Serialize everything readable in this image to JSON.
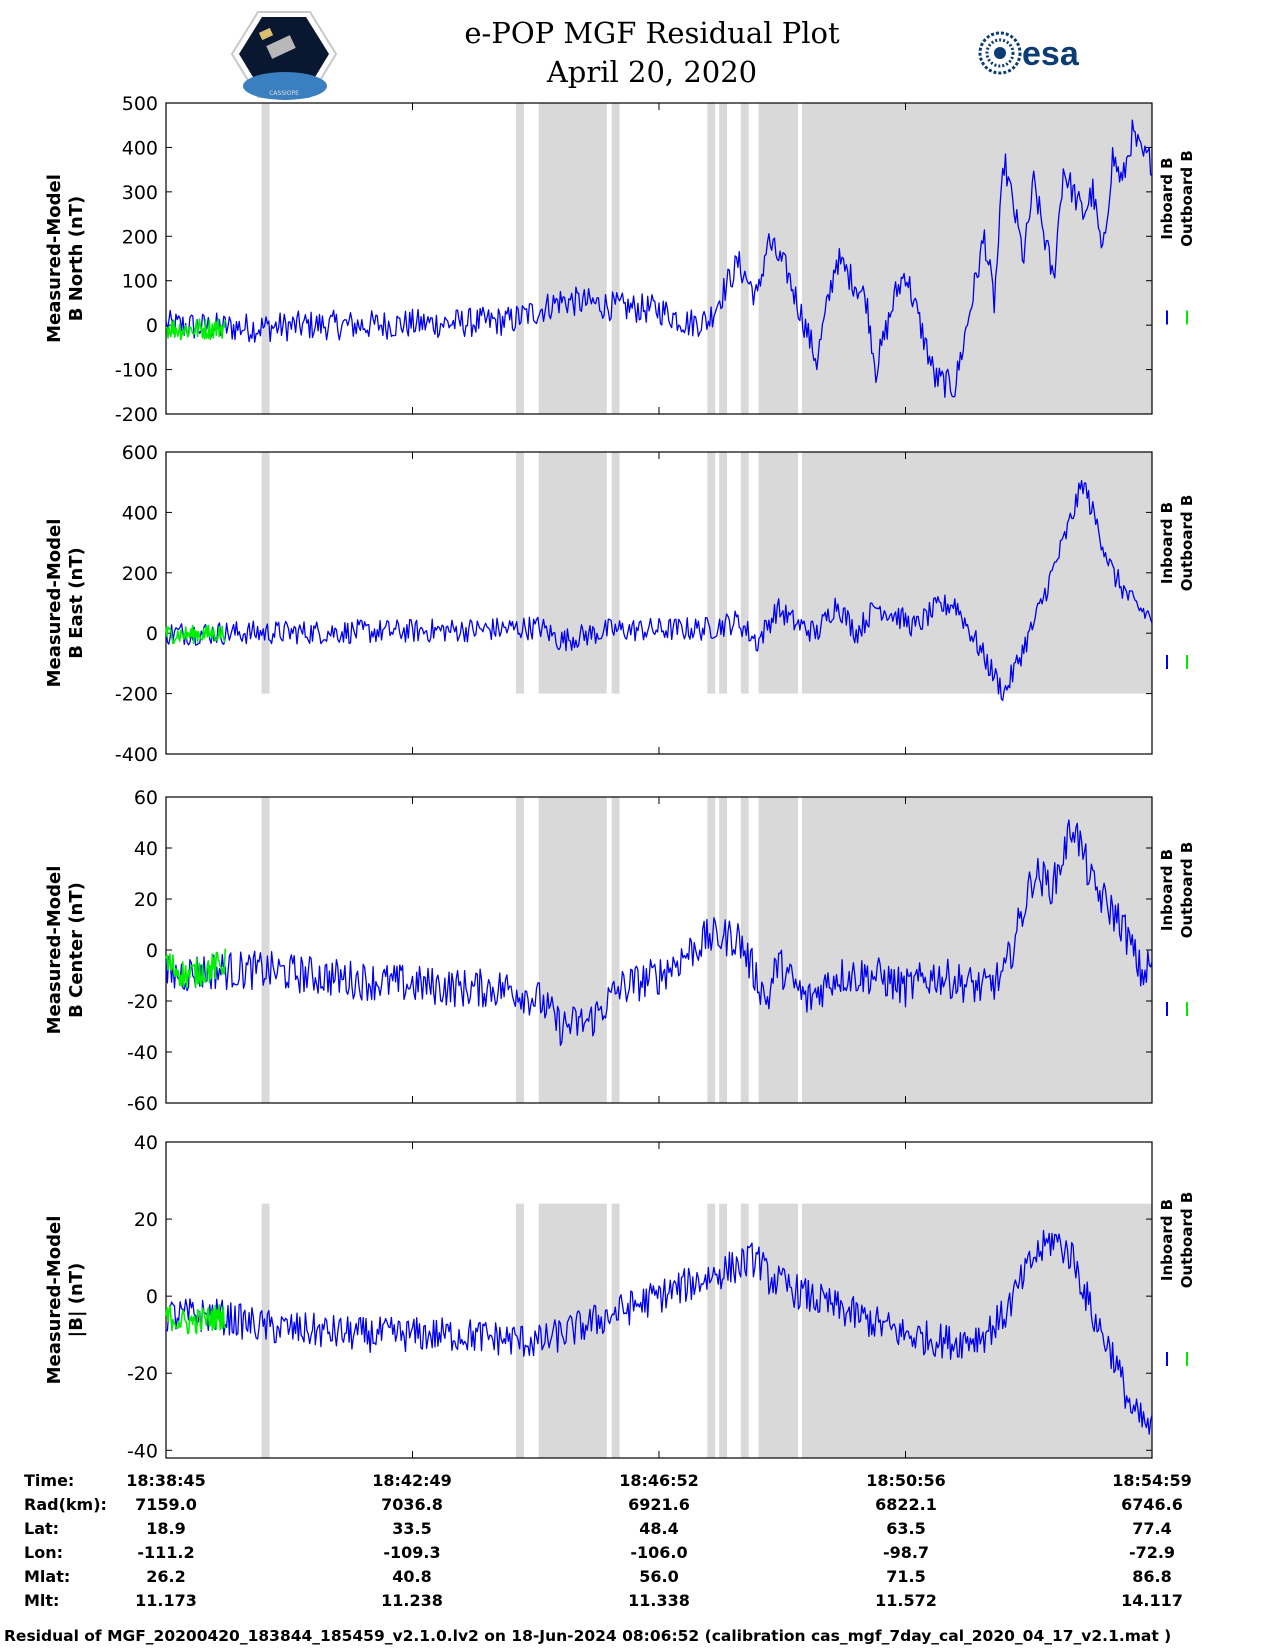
{
  "header": {
    "title_line1": "e-POP MGF Residual Plot",
    "title_line2": "April 20, 2020",
    "esa_logo_text": "esa",
    "cassiope_logo_text": "CASSIOPE"
  },
  "colors": {
    "inboard": "#0000ee",
    "outboard": "#00ee00",
    "shade": "#d9d9d9"
  },
  "legend": {
    "inboard": "Inboard B",
    "outboard": "Outboard B"
  },
  "chart_data": [
    {
      "type": "line",
      "ylabel_line1": "Measured-Model",
      "ylabel_line2": "B North (nT)",
      "ylim": [
        -200,
        500
      ],
      "yticks": [
        "500",
        "400",
        "300",
        "200",
        "100",
        "0",
        "-100",
        "-200"
      ],
      "shade_ylim": [
        -200,
        500
      ],
      "x_time_range": [
        "18:38:45",
        "18:54:59"
      ],
      "series": [
        {
          "name": "Inboard B",
          "color": "#0000ee",
          "x_frac": [
            0,
            0.05,
            0.1,
            0.15,
            0.2,
            0.25,
            0.3,
            0.35,
            0.38,
            0.4,
            0.43,
            0.46,
            0.5,
            0.53,
            0.55,
            0.58,
            0.6,
            0.61,
            0.63,
            0.66,
            0.68,
            0.71,
            0.72,
            0.74,
            0.75,
            0.78,
            0.8,
            0.83,
            0.84,
            0.85,
            0.87,
            0.88,
            0.9,
            0.91,
            0.93,
            0.94,
            0.95,
            0.96,
            0.97,
            0.98,
            0.99,
            1.0
          ],
          "values": [
            0,
            -5,
            -5,
            0,
            0,
            3,
            5,
            10,
            35,
            55,
            50,
            40,
            35,
            5,
            10,
            140,
            60,
            190,
            120,
            -80,
            150,
            60,
            -100,
            70,
            120,
            -120,
            -140,
            200,
            50,
            370,
            150,
            320,
            100,
            350,
            250,
            300,
            150,
            380,
            320,
            430,
            380,
            370
          ]
        },
        {
          "name": "Outboard B",
          "color": "#00ee00",
          "x_frac": [
            0,
            0.02,
            0.04,
            0.06
          ],
          "values": [
            -5,
            -10,
            -8,
            -5
          ]
        }
      ]
    },
    {
      "type": "line",
      "ylabel_line1": "Measured-Model",
      "ylabel_line2": "B East (nT)",
      "ylim": [
        -400,
        600
      ],
      "yticks": [
        "600",
        "400",
        "200",
        "0",
        "-200",
        "-400"
      ],
      "shade_ylim": [
        -200,
        600
      ],
      "x_time_range": [
        "18:38:45",
        "18:54:59"
      ],
      "series": [
        {
          "name": "Inboard B",
          "color": "#0000ee",
          "x_frac": [
            0,
            0.1,
            0.2,
            0.3,
            0.35,
            0.38,
            0.4,
            0.42,
            0.45,
            0.5,
            0.55,
            0.58,
            0.6,
            0.62,
            0.64,
            0.66,
            0.68,
            0.7,
            0.72,
            0.74,
            0.76,
            0.78,
            0.8,
            0.83,
            0.85,
            0.88,
            0.91,
            0.93,
            0.94,
            0.96,
            0.98,
            1.0
          ],
          "values": [
            0,
            2,
            5,
            10,
            15,
            20,
            -25,
            -10,
            10,
            12,
            15,
            40,
            -30,
            80,
            30,
            0,
            100,
            0,
            90,
            60,
            20,
            80,
            100,
            -80,
            -200,
            30,
            300,
            500,
            400,
            200,
            100,
            50
          ]
        },
        {
          "name": "Outboard B",
          "color": "#00ee00",
          "x_frac": [
            0,
            0.02,
            0.04,
            0.06
          ],
          "values": [
            -3,
            -5,
            -2,
            0
          ]
        }
      ]
    },
    {
      "type": "line",
      "ylabel_line1": "Measured-Model",
      "ylabel_line2": "B Center (nT)",
      "ylim": [
        -60,
        60
      ],
      "yticks": [
        "60",
        "40",
        "20",
        "0",
        "-20",
        "-40",
        "-60"
      ],
      "shade_ylim": [
        -60,
        60
      ],
      "x_time_range": [
        "18:38:45",
        "18:54:59"
      ],
      "series": [
        {
          "name": "Inboard B",
          "color": "#0000ee",
          "x_frac": [
            0,
            0.05,
            0.1,
            0.2,
            0.3,
            0.35,
            0.38,
            0.4,
            0.43,
            0.46,
            0.5,
            0.55,
            0.58,
            0.61,
            0.62,
            0.65,
            0.68,
            0.72,
            0.75,
            0.78,
            0.8,
            0.83,
            0.85,
            0.88,
            0.9,
            0.92,
            0.94,
            0.95,
            0.97,
            0.99,
            1.0
          ],
          "values": [
            -10,
            -8,
            -8,
            -12,
            -15,
            -15,
            -20,
            -30,
            -28,
            -15,
            -10,
            5,
            5,
            -20,
            -5,
            -20,
            -10,
            -10,
            -15,
            -10,
            -12,
            -15,
            -10,
            30,
            25,
            50,
            25,
            20,
            10,
            -10,
            -5
          ]
        },
        {
          "name": "Outboard B",
          "color": "#00ee00",
          "x_frac": [
            0,
            0.02,
            0.04,
            0.06
          ],
          "values": [
            -5,
            -10,
            -8,
            -5
          ]
        }
      ]
    },
    {
      "type": "line",
      "ylabel_line1": "Measured-Model",
      "ylabel_line2": "|B| (nT)",
      "ylim": [
        -42,
        40
      ],
      "yticks": [
        "40",
        "20",
        "0",
        "-20",
        "-40"
      ],
      "shade_ylim": [
        -42,
        24
      ],
      "x_time_range": [
        "18:38:45",
        "18:54:59"
      ],
      "series": [
        {
          "name": "Inboard B",
          "color": "#0000ee",
          "x_frac": [
            0,
            0.05,
            0.1,
            0.2,
            0.3,
            0.38,
            0.45,
            0.5,
            0.55,
            0.6,
            0.61,
            0.65,
            0.7,
            0.75,
            0.8,
            0.83,
            0.85,
            0.88,
            0.9,
            0.92,
            0.94,
            0.96,
            0.98,
            1.0
          ],
          "values": [
            -5,
            -5,
            -8,
            -10,
            -10,
            -12,
            -5,
            0,
            5,
            10,
            5,
            0,
            -5,
            -10,
            -12,
            -10,
            -5,
            10,
            15,
            10,
            -5,
            -15,
            -30,
            -35
          ]
        },
        {
          "name": "Outboard B",
          "color": "#00ee00",
          "x_frac": [
            0,
            0.02,
            0.04,
            0.06
          ],
          "values": [
            -5,
            -7,
            -6,
            -5
          ]
        }
      ]
    }
  ],
  "shaded_intervals": [
    [
      0.097,
      0.105
    ],
    [
      0.355,
      0.363
    ],
    [
      0.378,
      0.447
    ],
    [
      0.452,
      0.46
    ],
    [
      0.549,
      0.557
    ],
    [
      0.561,
      0.569
    ],
    [
      0.583,
      0.591
    ],
    [
      0.601,
      0.641
    ],
    [
      0.645,
      1.0
    ]
  ],
  "info_table": {
    "row_labels": [
      "Time:",
      "Rad(km):",
      "Lat:",
      "Lon:",
      "Mlat:",
      "Mlt:"
    ],
    "columns": [
      [
        "18:38:45",
        "7159.0",
        "18.9",
        "-111.2",
        "26.2",
        "11.173"
      ],
      [
        "18:42:49",
        "7036.8",
        "33.5",
        "-109.3",
        "40.8",
        "11.238"
      ],
      [
        "18:46:52",
        "6921.6",
        "48.4",
        "-106.0",
        "56.0",
        "11.338"
      ],
      [
        "18:50:56",
        "6822.1",
        "63.5",
        "-98.7",
        "71.5",
        "11.572"
      ],
      [
        "18:54:59",
        "6746.6",
        "77.4",
        "-72.9",
        "86.8",
        "14.117"
      ]
    ]
  },
  "footer": "Residual of MGF_20200420_183844_185459_v2.1.0.lv2 on 18-Jun-2024 08:06:52 (calibration cas_mgf_7day_cal_2020_04_17_v2.1.mat )"
}
